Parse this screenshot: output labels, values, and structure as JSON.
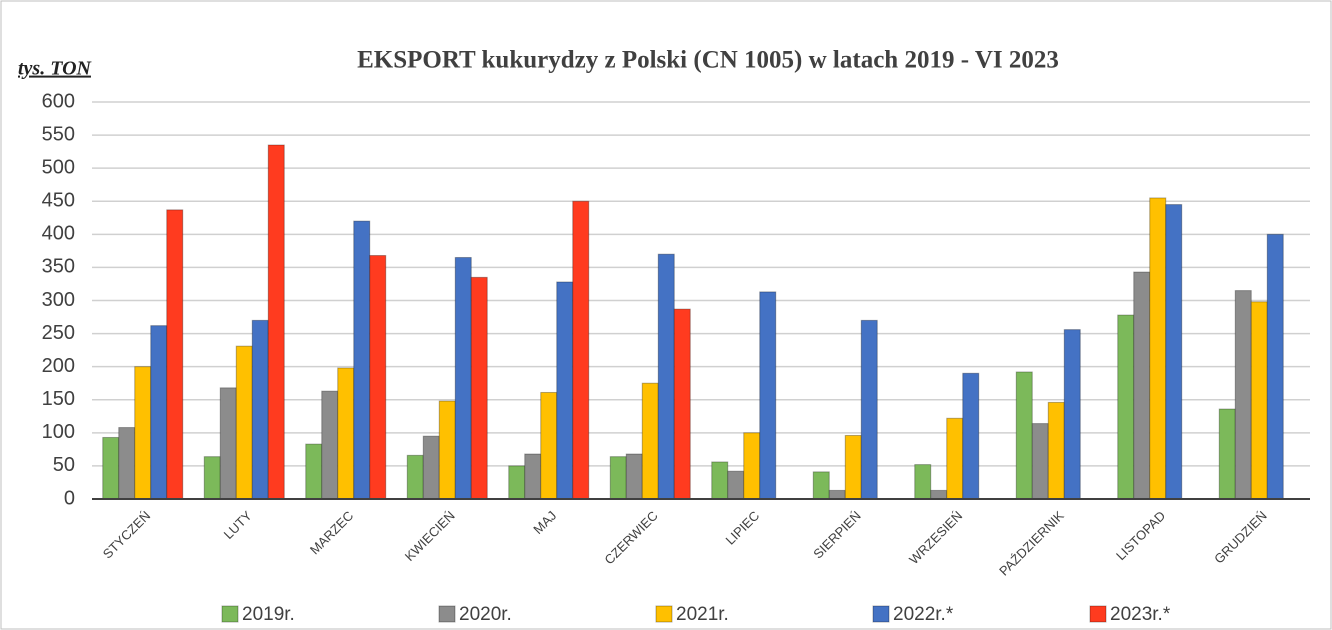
{
  "chart_data": {
    "type": "bar",
    "title": "EKSPORT kukurydzy z Polski (CN 1005) w latach 2019 - VI 2023",
    "y_label": "tys. TON",
    "categories": [
      "STYCZEŃ",
      "LUTY",
      "MARZEC",
      "KWIECIEŃ",
      "MAJ",
      "CZERWIEC",
      "LIPIEC",
      "SIERPIEŃ",
      "WRZESIEŃ",
      "PAŹDZIERNIK",
      "LISTOPAD",
      "GRUDZIEŃ"
    ],
    "series": [
      {
        "name": "2019r.",
        "color": "#7cb95a",
        "values": [
          93,
          64,
          83,
          66,
          50,
          64,
          56,
          41,
          52,
          192,
          278,
          136
        ]
      },
      {
        "name": "2020r.",
        "color": "#8c8c8c",
        "values": [
          108,
          168,
          163,
          95,
          68,
          68,
          42,
          13,
          13,
          114,
          343,
          315
        ]
      },
      {
        "name": "2021r.",
        "color": "#ffc000",
        "values": [
          200,
          231,
          198,
          148,
          161,
          175,
          100,
          96,
          122,
          146,
          455,
          298
        ]
      },
      {
        "name": "2022r.*",
        "color": "#4472c4",
        "values": [
          262,
          270,
          420,
          365,
          328,
          370,
          313,
          270,
          190,
          256,
          445,
          400
        ]
      },
      {
        "name": "2023r.*",
        "color": "#ff3b1f",
        "values": [
          437,
          535,
          368,
          335,
          450,
          287,
          null,
          null,
          null,
          null,
          null,
          null
        ]
      }
    ],
    "ylim": [
      0,
      600
    ],
    "yticks": [
      0,
      50,
      100,
      150,
      200,
      250,
      300,
      350,
      400,
      450,
      500,
      550,
      600
    ],
    "grid": true
  }
}
